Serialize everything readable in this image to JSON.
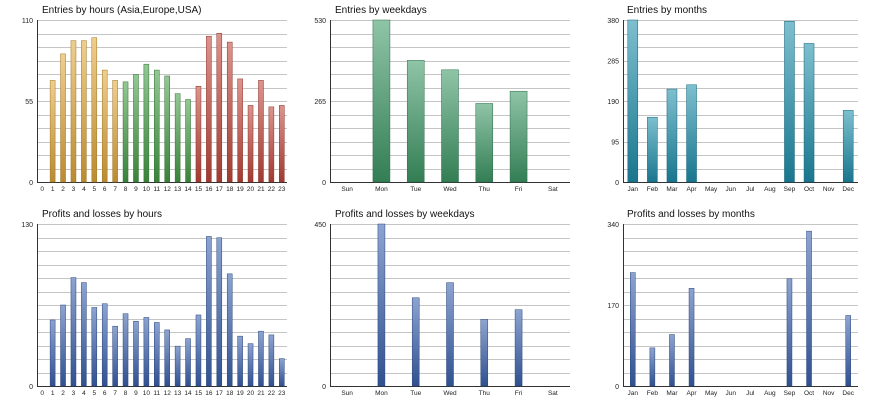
{
  "chart_data": [
    {
      "type": "bar",
      "title": "Entries by hours (Asia,Europe,USA)",
      "categories": [
        "0",
        "1",
        "2",
        "3",
        "4",
        "5",
        "6",
        "7",
        "8",
        "9",
        "10",
        "11",
        "12",
        "13",
        "14",
        "15",
        "16",
        "17",
        "18",
        "19",
        "20",
        "21",
        "22",
        "23"
      ],
      "values": [
        0,
        69,
        87,
        96,
        96,
        98,
        76,
        69,
        68,
        73,
        80,
        76,
        72,
        60,
        56,
        65,
        99,
        101,
        95,
        70,
        52,
        69,
        51,
        52
      ],
      "colors": [
        "#e3aa3b",
        "#e3aa3b",
        "#e3aa3b",
        "#e3aa3b",
        "#e3aa3b",
        "#e3aa3b",
        "#e3aa3b",
        "#e3aa3b",
        "#44a046",
        "#44a046",
        "#44a046",
        "#44a046",
        "#44a046",
        "#44a046",
        "#44a046",
        "#c4473a",
        "#c4473a",
        "#c4473a",
        "#c4473a",
        "#c4473a",
        "#c4473a",
        "#c4473a",
        "#c4473a",
        "#c4473a"
      ],
      "yticks": [
        "0",
        "55",
        "110"
      ],
      "ylim": [
        0,
        110
      ],
      "grid": true
    },
    {
      "type": "bar",
      "title": "Entries by weekdays",
      "categories": [
        "Sun",
        "Mon",
        "Tue",
        "Wed",
        "Thu",
        "Fri",
        "Sat"
      ],
      "values": [
        0,
        530,
        398,
        367,
        257,
        297,
        0
      ],
      "colors": [
        "#3e9a67"
      ],
      "yticks": [
        "0",
        "265",
        "530"
      ],
      "ylim": [
        0,
        530
      ],
      "grid": true
    },
    {
      "type": "bar",
      "title": "Entries by months",
      "categories": [
        "Jan",
        "Feb",
        "Mar",
        "Apr",
        "May",
        "Jun",
        "Jul",
        "Aug",
        "Sep",
        "Oct",
        "Nov",
        "Dec"
      ],
      "values": [
        380,
        152,
        218,
        228,
        0,
        0,
        0,
        0,
        377,
        325,
        0,
        168
      ],
      "colors": [
        "#1e90ad"
      ],
      "yticks": [
        "0",
        "95",
        "190",
        "285",
        "380"
      ],
      "ylim": [
        0,
        380
      ],
      "grid": true
    },
    {
      "type": "bar",
      "title": "Profits and losses by hours",
      "categories": [
        "0",
        "1",
        "2",
        "3",
        "4",
        "5",
        "6",
        "7",
        "8",
        "9",
        "10",
        "11",
        "12",
        "13",
        "14",
        "15",
        "16",
        "17",
        "18",
        "19",
        "20",
        "21",
        "22",
        "23"
      ],
      "values": [
        0,
        53,
        65,
        87,
        83,
        63,
        66,
        48,
        58,
        52,
        55,
        51,
        45,
        32,
        38,
        57,
        120,
        119,
        90,
        40,
        34,
        44,
        41,
        22
      ],
      "colors": [
        "#3a62b0"
      ],
      "yticks": [
        "0",
        "130"
      ],
      "ylim": [
        0,
        130
      ],
      "grid": true
    },
    {
      "type": "bar",
      "title": "Profits and losses by weekdays",
      "categories": [
        "Sun",
        "Mon",
        "Tue",
        "Wed",
        "Thu",
        "Fri",
        "Sat"
      ],
      "values": [
        0,
        450,
        245,
        287,
        185,
        212,
        0
      ],
      "colors": [
        "#3a62b0"
      ],
      "yticks": [
        "0",
        "450"
      ],
      "ylim": [
        0,
        450
      ],
      "grid": true
    },
    {
      "type": "bar",
      "title": "Profits and losses by months",
      "categories": [
        "Jan",
        "Feb",
        "Mar",
        "Apr",
        "May",
        "Jun",
        "Jul",
        "Aug",
        "Sep",
        "Oct",
        "Nov",
        "Dec"
      ],
      "values": [
        238,
        80,
        108,
        205,
        0,
        0,
        0,
        0,
        225,
        325,
        0,
        148
      ],
      "colors": [
        "#3a62b0"
      ],
      "yticks": [
        "0",
        "170",
        "340"
      ],
      "ylim": [
        0,
        340
      ],
      "grid": true
    }
  ]
}
